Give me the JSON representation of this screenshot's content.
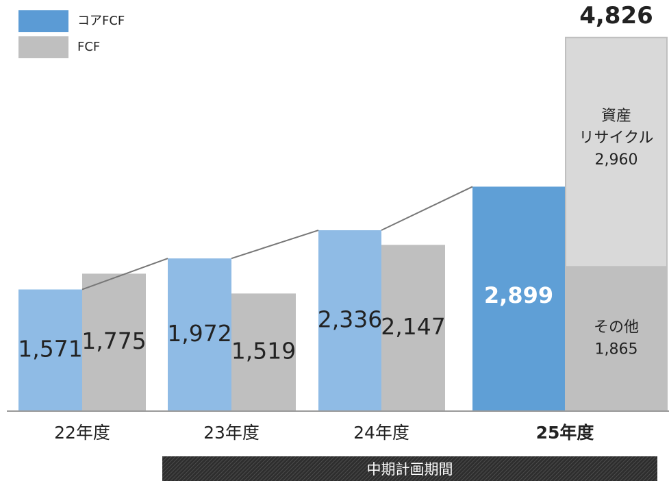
{
  "chart_data": {
    "type": "bar",
    "categories": [
      "22年度",
      "23年度",
      "24年度",
      "25年度"
    ],
    "category_bold": [
      false,
      false,
      false,
      true
    ],
    "series": [
      {
        "name": "コアFCF",
        "color": "#5b9bd5",
        "colors": [
          "#8fbbe5",
          "#8fbbe5",
          "#8fbbe5",
          "#5f9fd6"
        ],
        "values": [
          1571,
          1972,
          2336,
          2899
        ],
        "value_labels": [
          "1,571",
          "1,972",
          "2,336",
          "2,899"
        ]
      },
      {
        "name": "FCF",
        "color": "#bfbfbf",
        "values": [
          1775,
          1519,
          2147,
          null
        ],
        "value_labels": [
          "1,775",
          "1,519",
          "2,147",
          null
        ]
      }
    ],
    "stack_segments": [
      {
        "name_lines": [
          "その他"
        ],
        "value": 1865,
        "value_label": "1,865",
        "color": "#bfbfbf"
      },
      {
        "name_lines": [
          "資産",
          "リサイクル"
        ],
        "value": 2960,
        "value_label": "2,960",
        "color": "#d9d9d9"
      }
    ],
    "total": 4826,
    "total_label": "4,826",
    "period_label": "中期計画期間",
    "period_span": [
      1,
      3
    ]
  }
}
